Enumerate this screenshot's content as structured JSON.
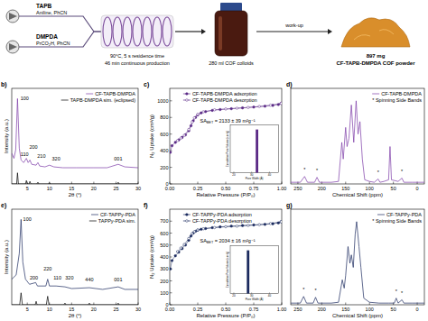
{
  "schematic": {
    "inputs": [
      {
        "name": "TAPB",
        "solvent": "Aniline, PhCN"
      },
      {
        "name": "DMPDA",
        "solvent": "PrCO₂H, PhCN"
      }
    ],
    "conditions": [
      "90°C, 5 s residence time",
      "46 min continuous production"
    ],
    "colloid": "280 ml COF colloids",
    "workup": "work-up",
    "product": [
      "897 mg",
      "CF-TAPB-DMPDA COF powder"
    ]
  },
  "chart_data": [
    {
      "type": "line",
      "panel": "b)",
      "x_label": "2θ (°)",
      "y_label": "Intensity (a.u.)",
      "xlim": [
        1.5,
        30
      ],
      "xticks": [
        5,
        10,
        15,
        20,
        25,
        30
      ],
      "ylim": [
        0,
        1.12
      ],
      "yticks": [],
      "tick_labels": "x",
      "legend": "upper right",
      "series": [
        {
          "name": "CF-TAPB-DMPDA",
          "color": "#7b3aa6",
          "x": [
            1.5,
            2.0,
            2.4,
            2.8,
            3.2,
            3.6,
            4.2,
            4.8,
            5.2,
            5.6,
            6.0,
            7.0,
            7.4,
            7.8,
            9.0,
            10.0,
            11.0,
            13.0,
            16.0,
            20.0,
            23.0,
            25.5,
            27.0,
            30.0
          ],
          "values": [
            0.36,
            0.3,
            0.4,
            1.0,
            0.42,
            0.28,
            0.25,
            0.3,
            0.25,
            0.28,
            0.23,
            0.22,
            0.25,
            0.21,
            0.2,
            0.22,
            0.2,
            0.19,
            0.19,
            0.19,
            0.19,
            0.23,
            0.2,
            0.19
          ]
        },
        {
          "name": "TAPB-DMPDA sim. (eclipsed)",
          "color": "#000000",
          "x": [
            1.5,
            2.6,
            2.8,
            3.0,
            4.6,
            4.8,
            5.0,
            5.4,
            5.6,
            5.8,
            7.2,
            7.4,
            7.6,
            9.8,
            10.0,
            10.2,
            25.3,
            25.5,
            25.7,
            30.0
          ],
          "values": [
            0,
            0,
            0.13,
            0,
            0,
            0.04,
            0,
            0,
            0.03,
            0,
            0,
            0.02,
            0,
            0,
            0.015,
            0,
            0,
            0.02,
            0,
            0
          ]
        }
      ],
      "annotations": [
        {
          "text": "100",
          "x": 4.4,
          "y": 0.98
        },
        {
          "text": "110",
          "x": 4.4,
          "y": 0.33
        },
        {
          "text": "200",
          "x": 6.4,
          "y": 0.41
        },
        {
          "text": "210",
          "x": 8.2,
          "y": 0.31
        },
        {
          "text": "320",
          "x": 11.5,
          "y": 0.28
        },
        {
          "text": "001",
          "x": 25.5,
          "y": 0.28
        }
      ]
    },
    {
      "type": "line",
      "panel": "c)",
      "x_label": "Relative Pressure (P/P₀)",
      "y_label": "N₂ Uptake (cm³/g)",
      "xlim": [
        0,
        1
      ],
      "xticks": [
        {
          "value": 0,
          "label": "0.00"
        },
        0.25,
        {
          "value": 0.5,
          "label": "0.50"
        },
        0.75,
        {
          "value": 1,
          "label": "1.00"
        }
      ],
      "ylim": [
        0,
        1150
      ],
      "yticks": [
        0,
        200,
        400,
        600,
        800,
        1000
      ],
      "legend": "upper left",
      "series": [
        {
          "name": "CF-TAPB-DMPDA adsorption",
          "color": "#5b2a86",
          "marker": "circle",
          "x": [
            0.005,
            0.02,
            0.05,
            0.08,
            0.11,
            0.14,
            0.17,
            0.19,
            0.21,
            0.23,
            0.25,
            0.28,
            0.32,
            0.38,
            0.45,
            0.55,
            0.65,
            0.75,
            0.85,
            0.92,
            0.97,
            0.995
          ],
          "values": [
            380,
            460,
            500,
            530,
            560,
            590,
            640,
            700,
            760,
            800,
            830,
            855,
            870,
            885,
            895,
            905,
            915,
            925,
            935,
            945,
            955,
            970
          ]
        },
        {
          "name": "CF-TAPB-DMPDA desorption",
          "color": "#5b2a86",
          "marker": "open_circle",
          "x": [
            0.995,
            0.9,
            0.8,
            0.7,
            0.6,
            0.5,
            0.4,
            0.3,
            0.25,
            0.22,
            0.2,
            0.17,
            0.13,
            0.1,
            0.07
          ],
          "values": [
            970,
            948,
            932,
            920,
            911,
            902,
            892,
            868,
            838,
            795,
            745,
            655,
            585,
            552,
            522
          ]
        }
      ],
      "annotations": [
        {
          "text": "SA",
          "subscript": "BET",
          "suffix": " = 2133 ± 39 m²g⁻¹",
          "x": 0.27,
          "y": 740
        }
      ],
      "inset": {
        "type": "bar",
        "x_label": "Pore Width (Å)",
        "y_label": "Cumulative Pore Volume (cm³/g)",
        "xlim": [
          18,
          45
        ],
        "xticks": [
          20,
          30,
          40
        ],
        "ylim": [
          0,
          1
        ],
        "yticks": [],
        "tick_labels": "x",
        "series": [
          {
            "color": "#5b2a86",
            "x": [
              33
            ],
            "values": [
              0.9
            ]
          }
        ]
      }
    },
    {
      "type": "line",
      "panel": "d)",
      "x_label": "Chemical Shift (ppm)",
      "xlim": [
        265,
        -15
      ],
      "xticks": [
        250,
        200,
        150,
        100,
        50,
        0
      ],
      "ylim": [
        0,
        1.15
      ],
      "yticks": [],
      "tick_labels": "x",
      "legend": "upper right",
      "note": "* Spinning Side Bands",
      "series": [
        {
          "name": "CF-TAPB-DMPDA",
          "color": "#7b3aa6",
          "x": [
            265,
            245,
            236,
            230,
            215,
            210,
            205,
            180,
            165,
            158,
            155,
            150,
            147,
            143,
            138,
            133,
            128,
            124,
            120,
            115,
            110,
            100,
            90,
            82,
            78,
            70,
            60,
            57,
            54,
            40,
            32,
            28,
            10,
            -15
          ],
          "values": [
            0.02,
            0.02,
            0.09,
            0.02,
            0.02,
            0.08,
            0.02,
            0.02,
            0.03,
            0.5,
            0.3,
            0.68,
            0.45,
            0.55,
            0.95,
            0.5,
            1.0,
            0.6,
            0.75,
            0.3,
            0.05,
            0.03,
            0.02,
            0.06,
            0.02,
            0.03,
            0.05,
            0.45,
            0.05,
            0.03,
            0.07,
            0.02,
            0.02,
            0.02
          ]
        }
      ],
      "annotations": [
        {
          "text": "*",
          "x": 236,
          "y": 0.15
        },
        {
          "text": "*",
          "x": 210,
          "y": 0.14
        },
        {
          "text": "*",
          "x": 82,
          "y": 0.12
        },
        {
          "text": "*",
          "x": 32,
          "y": 0.13
        }
      ]
    },
    {
      "type": "line",
      "panel": "e)",
      "x_label": "2θ (°)",
      "y_label": "Intensity (a.u.)",
      "xlim": [
        1.5,
        30
      ],
      "xticks": [
        5,
        10,
        15,
        20,
        25,
        30
      ],
      "ylim": [
        0,
        1.12
      ],
      "yticks": [],
      "tick_labels": "x",
      "legend": "upper right",
      "series": [
        {
          "name": "CF-TAPPy-PDA",
          "color": "#1b2a5e",
          "x": [
            1.5,
            2.5,
            3.2,
            3.6,
            4.0,
            4.6,
            5.5,
            6.9,
            7.3,
            9.2,
            9.6,
            10.0,
            11.5,
            13.5,
            15.0,
            19.0,
            22.0,
            25.5,
            27.0,
            30.0
          ],
          "values": [
            0.3,
            0.35,
            0.6,
            1.0,
            0.5,
            0.3,
            0.24,
            0.26,
            0.22,
            0.22,
            0.3,
            0.22,
            0.22,
            0.21,
            0.19,
            0.2,
            0.18,
            0.21,
            0.18,
            0.18
          ]
        },
        {
          "name": "TAPPy-PDA sim.",
          "color": "#000000",
          "x": [
            1.5,
            3.3,
            3.6,
            3.9,
            6.8,
            7.0,
            7.2,
            9.3,
            9.6,
            9.9,
            13.3,
            13.5,
            13.7,
            18.8,
            19.0,
            19.2,
            25.3,
            25.5,
            25.7,
            30.0
          ],
          "values": [
            0,
            0,
            0.14,
            0,
            0,
            0.04,
            0,
            0,
            0.1,
            0,
            0,
            0.02,
            0,
            0,
            0.02,
            0,
            0,
            0.02,
            0,
            0
          ]
        }
      ],
      "annotations": [
        {
          "text": "100",
          "x": 5.0,
          "y": 0.98
        },
        {
          "text": "200",
          "x": 6.5,
          "y": 0.3
        },
        {
          "text": "220",
          "x": 9.6,
          "y": 0.4
        },
        {
          "text": "110",
          "x": 11.8,
          "y": 0.3
        },
        {
          "text": "320",
          "x": 14.5,
          "y": 0.3
        },
        {
          "text": "440",
          "x": 19.0,
          "y": 0.27
        },
        {
          "text": "001",
          "x": 25.5,
          "y": 0.27
        }
      ]
    },
    {
      "type": "line",
      "panel": "f)",
      "x_label": "Relative Pressure (P/P₀)",
      "y_label": "N₂ Uptake (cm³/g)",
      "xlim": [
        0,
        1
      ],
      "xticks": [
        {
          "value": 0,
          "label": "0.00"
        },
        0.25,
        {
          "value": 0.5,
          "label": "0.50"
        },
        0.75,
        {
          "value": 1,
          "label": "1.00"
        }
      ],
      "ylim": [
        0,
        800
      ],
      "yticks": [
        0,
        100,
        200,
        300,
        400,
        500,
        600,
        700
      ],
      "legend": "upper left",
      "series": [
        {
          "name": "CF-TAPPy-PDA adsorption",
          "color": "#1b2a5e",
          "marker": "circle",
          "x": [
            0.005,
            0.02,
            0.05,
            0.08,
            0.11,
            0.14,
            0.17,
            0.19,
            0.21,
            0.23,
            0.25,
            0.28,
            0.32,
            0.38,
            0.45,
            0.55,
            0.65,
            0.75,
            0.85,
            0.92,
            0.97,
            0.995
          ],
          "values": [
            300,
            370,
            410,
            440,
            470,
            500,
            540,
            575,
            600,
            615,
            625,
            632,
            638,
            645,
            652,
            658,
            663,
            668,
            673,
            678,
            685,
            695
          ]
        },
        {
          "name": "CF-TAPPy-PDA desorption",
          "color": "#1b2a5e",
          "marker": "open_circle",
          "x": [
            0.995,
            0.9,
            0.8,
            0.7,
            0.6,
            0.5,
            0.4,
            0.3,
            0.25,
            0.22,
            0.2,
            0.17,
            0.13,
            0.1,
            0.07
          ],
          "values": [
            695,
            680,
            670,
            664,
            658,
            653,
            646,
            636,
            626,
            612,
            596,
            555,
            505,
            475,
            445
          ]
        }
      ],
      "annotations": [
        {
          "text": "SA",
          "subscript": "BET",
          "suffix": " = 2034 ± 16 m²g⁻¹",
          "x": 0.27,
          "y": 520
        }
      ],
      "inset": {
        "type": "bar",
        "x_label": "Pore Width (Å)",
        "y_label": "Cumulative Pore Volume (cm³/g)",
        "xlim": [
          18,
          45
        ],
        "xticks": [
          20,
          30,
          40
        ],
        "ylim": [
          0,
          1
        ],
        "yticks": [],
        "tick_labels": "x",
        "series": [
          {
            "color": "#1b2a5e",
            "x": [
              28
            ],
            "values": [
              0.9
            ]
          }
        ]
      }
    },
    {
      "type": "line",
      "panel": "g)",
      "x_label": "Chemical Shift (ppm)",
      "xlim": [
        265,
        -15
      ],
      "xticks": [
        250,
        200,
        150,
        100,
        50,
        0
      ],
      "ylim": [
        0,
        1.15
      ],
      "yticks": [],
      "tick_labels": "x",
      "legend": "upper right",
      "note": "* Spinning Side Bands",
      "series": [
        {
          "name": "CF-TAPPy-PDA",
          "color": "#1b2a5e",
          "x": [
            265,
            245,
            238,
            232,
            218,
            213,
            208,
            180,
            165,
            157,
            153,
            150,
            145,
            141,
            138,
            134,
            130,
            127,
            122,
            118,
            112,
            100,
            80,
            60,
            48,
            44,
            40,
            32,
            28,
            10,
            -15
          ],
          "values": [
            0.02,
            0.02,
            0.1,
            0.02,
            0.02,
            0.09,
            0.02,
            0.02,
            0.03,
            0.3,
            0.2,
            0.35,
            0.7,
            0.5,
            0.6,
            0.45,
            0.85,
            1.0,
            0.7,
            0.45,
            0.08,
            0.03,
            0.02,
            0.02,
            0.02,
            0.08,
            0.02,
            0.06,
            0.02,
            0.02,
            0.02
          ]
        }
      ],
      "annotations": [
        {
          "text": "*",
          "x": 238,
          "y": 0.16
        },
        {
          "text": "*",
          "x": 213,
          "y": 0.15
        },
        {
          "text": "*",
          "x": 44,
          "y": 0.14
        },
        {
          "text": "*",
          "x": 32,
          "y": 0.12
        }
      ]
    }
  ]
}
